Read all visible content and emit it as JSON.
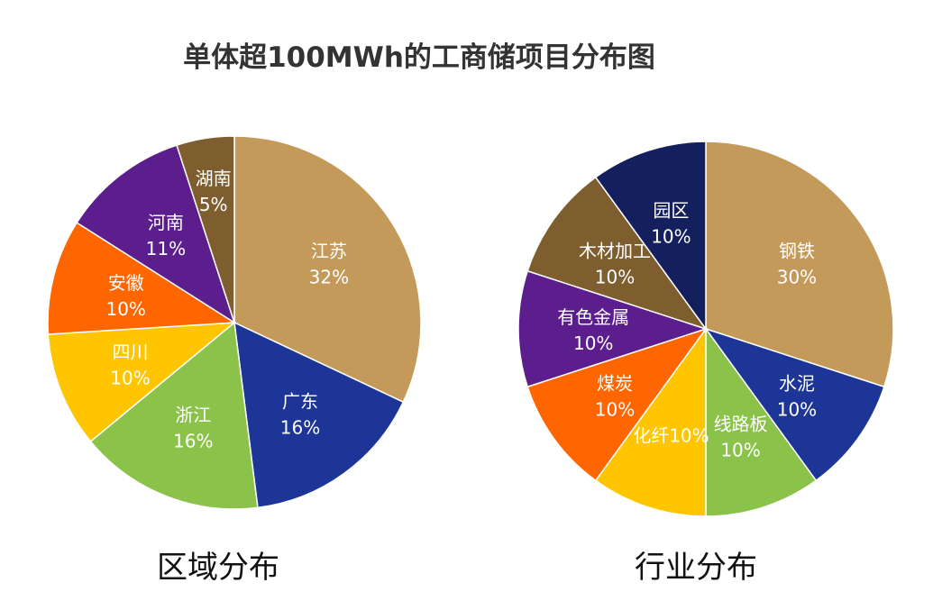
{
  "chart_data": [
    {
      "type": "pie",
      "title": "单体超100MWh的工商储项目分布图",
      "subtitle": "区域分布",
      "start": "top",
      "direction": "clockwise",
      "slices": [
        {
          "label": "江苏",
          "value": 32,
          "text": "32%",
          "color": "#C49A5A"
        },
        {
          "label": "广东",
          "value": 16,
          "text": "16%",
          "color": "#1C3596"
        },
        {
          "label": "浙江",
          "value": 16,
          "text": "16%",
          "color": "#8BC24A"
        },
        {
          "label": "四川",
          "value": 10,
          "text": "10%",
          "color": "#FFC600"
        },
        {
          "label": "安徽",
          "value": 10,
          "text": "10%",
          "color": "#FF6600"
        },
        {
          "label": "河南",
          "value": 11,
          "text": "11%",
          "color": "#5C1E8C"
        },
        {
          "label": "湖南",
          "value": 5,
          "text": "5%",
          "color": "#7E5E2E"
        }
      ]
    },
    {
      "type": "pie",
      "subtitle": "行业分布",
      "start": "top",
      "direction": "clockwise",
      "slices": [
        {
          "label": "钢铁",
          "value": 30,
          "text": "30%",
          "color": "#C49A5A"
        },
        {
          "label": "水泥",
          "value": 10,
          "text": "10%",
          "color": "#1C3596"
        },
        {
          "label": "线路板",
          "value": 10,
          "text": "10%",
          "color": "#8BC24A"
        },
        {
          "label": "化纤10%",
          "value": 10,
          "text": "",
          "color": "#FFC600"
        },
        {
          "label": "煤炭",
          "value": 10,
          "text": "10%",
          "color": "#FF6600"
        },
        {
          "label": "有色金属",
          "value": 10,
          "text": "10%",
          "color": "#5C1E8C"
        },
        {
          "label": "木材加工",
          "value": 10,
          "text": "10%",
          "color": "#7E5E2E"
        },
        {
          "label": "园区",
          "value": 10,
          "text": "10%",
          "color": "#14205E"
        }
      ]
    }
  ]
}
